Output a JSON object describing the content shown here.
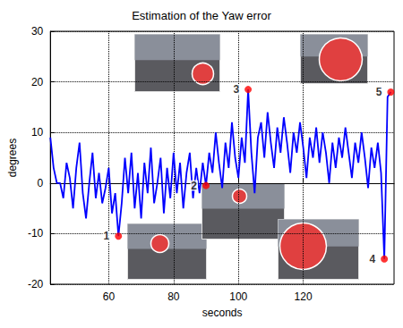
{
  "chart_data": {
    "type": "line",
    "title": "Estimation of the Yaw error",
    "x_label": "seconds",
    "y_label": "degrees",
    "xlim": [
      42,
      148
    ],
    "xticks": [
      60,
      80,
      100,
      120
    ],
    "ylim": [
      -20,
      30
    ],
    "yticks": [
      -20,
      -10,
      0,
      10,
      20,
      30
    ],
    "grid": true,
    "color": "#0000ff",
    "x": [
      42,
      43,
      44,
      45,
      46,
      47,
      48,
      49,
      50,
      51,
      52,
      53,
      54,
      55,
      56,
      57,
      58,
      59,
      60,
      61,
      62,
      63,
      64,
      65,
      66,
      67,
      68,
      69,
      70,
      71,
      72,
      73,
      74,
      75,
      76,
      77,
      78,
      79,
      80,
      81,
      82,
      83,
      84,
      85,
      86,
      87,
      88,
      89,
      90,
      91,
      92,
      93,
      94,
      95,
      96,
      97,
      98,
      99,
      100,
      101,
      102,
      103,
      104,
      105,
      106,
      107,
      108,
      109,
      110,
      111,
      112,
      113,
      114,
      115,
      116,
      117,
      118,
      119,
      120,
      121,
      122,
      123,
      124,
      125,
      126,
      127,
      128,
      129,
      130,
      131,
      132,
      133,
      134,
      135,
      136,
      137,
      138,
      139,
      140,
      141,
      142,
      143,
      144,
      145,
      146,
      147
    ],
    "values": [
      9,
      3,
      0,
      0,
      -3,
      4,
      1,
      -5,
      3,
      8,
      -2,
      -7,
      0,
      6,
      -3,
      2,
      -4,
      -1,
      3,
      -6,
      -2,
      -10.5,
      -4,
      5,
      -2,
      6,
      -5,
      2,
      -7,
      4,
      -2,
      7,
      -4,
      0,
      5,
      -6,
      3,
      -3,
      6,
      -2,
      4,
      -5,
      2,
      6,
      -3,
      3,
      -2,
      4,
      -0.5,
      6,
      2,
      10,
      4,
      -1,
      8,
      3,
      12,
      5,
      1,
      9,
      4,
      18.5,
      6,
      -2,
      9,
      12,
      5,
      14,
      8,
      3,
      11,
      6,
      13,
      8,
      2,
      10,
      6,
      12,
      7,
      1,
      9,
      5,
      11,
      4,
      10,
      6,
      0,
      8,
      3,
      9,
      5,
      11,
      6,
      1,
      8,
      4,
      10,
      5,
      -1,
      7,
      3,
      8,
      2,
      -15,
      17,
      18
    ],
    "annotations": [
      {
        "label": "1",
        "x": 63,
        "y": -10.5,
        "color": "#ff0000"
      },
      {
        "label": "2",
        "x": 90,
        "y": -0.5,
        "color": "#ff0000"
      },
      {
        "label": "3",
        "x": 103,
        "y": 18.5,
        "color": "#ff0000"
      },
      {
        "label": "4",
        "x": 145,
        "y": -15,
        "color": "#ff0000"
      },
      {
        "label": "5",
        "x": 147,
        "y": 18,
        "color": "#ff0000"
      }
    ]
  }
}
